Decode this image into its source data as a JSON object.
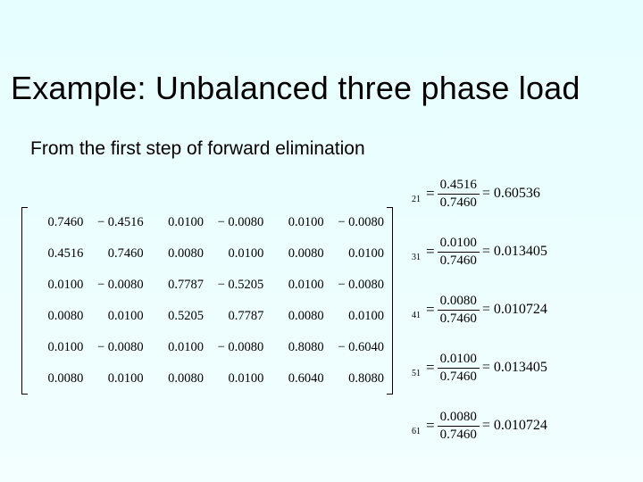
{
  "title": "Example: Unbalanced three phase load",
  "subtitle": "From the first step of forward elimination",
  "matrix": {
    "rows": [
      [
        "0.7460",
        "− 0.4516",
        "0.0100",
        "− 0.0080",
        "0.0100",
        "− 0.0080"
      ],
      [
        "0.4516",
        "0.7460",
        "0.0080",
        "0.0100",
        "0.0080",
        "0.0100"
      ],
      [
        "0.0100",
        "− 0.0080",
        "0.7787",
        "− 0.5205",
        "0.0100",
        "− 0.0080"
      ],
      [
        "0.0080",
        "0.0100",
        "0.5205",
        "0.7787",
        "0.0080",
        "0.0100"
      ],
      [
        "0.0100",
        "− 0.0080",
        "0.0100",
        "− 0.0080",
        "0.8080",
        "− 0.6040"
      ],
      [
        "0.0080",
        "0.0100",
        "0.0080",
        "0.0100",
        "0.6040",
        "0.8080"
      ]
    ]
  },
  "equations": {
    "items": [
      {
        "sub": "21",
        "num": "0.4516",
        "den": "0.7460",
        "res": "= 0.60536"
      },
      {
        "sub": "31",
        "num": "0.0100",
        "den": "0.7460",
        "res": "= 0.013405"
      },
      {
        "sub": "41",
        "num": "0.0080",
        "den": "0.7460",
        "res": "= 0.010724"
      },
      {
        "sub": "51",
        "num": "0.0100",
        "den": "0.7460",
        "res": "= 0.013405"
      },
      {
        "sub": "61",
        "num": "0.0080",
        "den": "0.7460",
        "res": "= 0.010724"
      }
    ]
  },
  "style": {
    "background_top": "#e6feff",
    "background_bottom": "#f2feff",
    "title_fontsize": 36,
    "subtitle_fontsize": 21,
    "math_font": "Times New Roman",
    "matrix_fontsize": 14.5,
    "eq_fontsize": 16,
    "text_color": "#000000"
  }
}
